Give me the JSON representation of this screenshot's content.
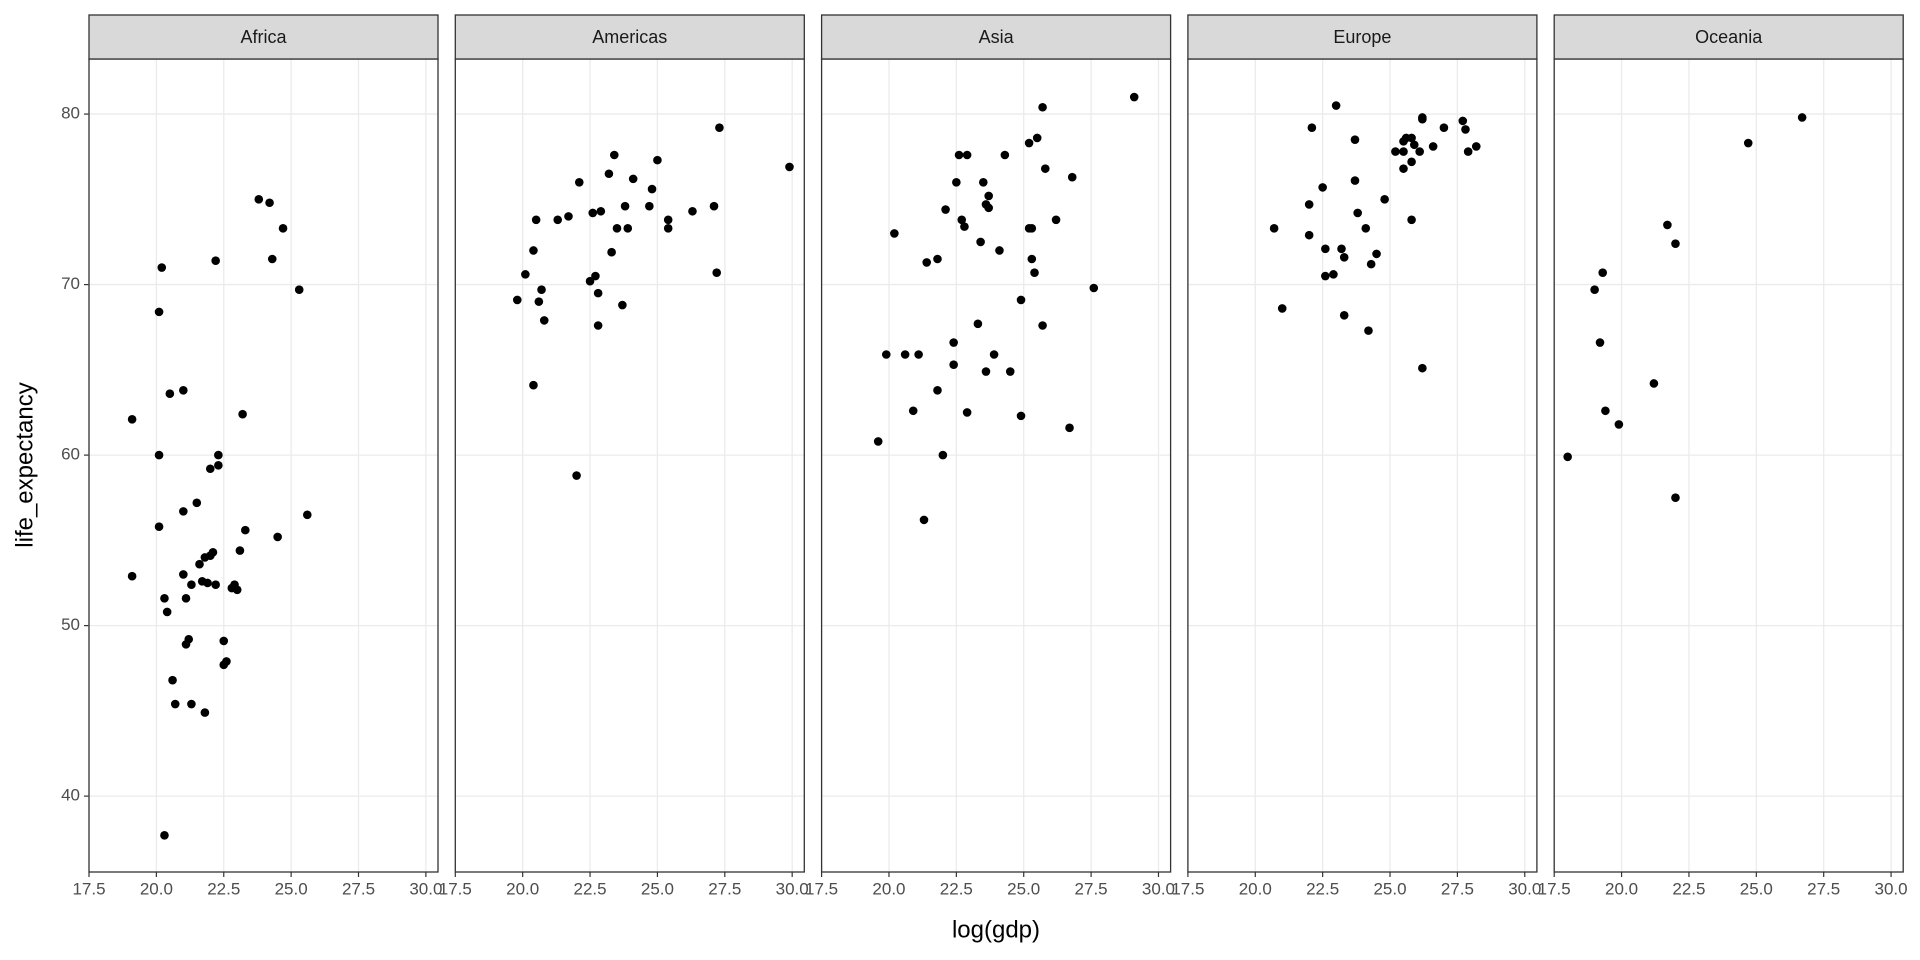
{
  "chart_data": {
    "type": "scatter",
    "x_label": "log(gdp)",
    "y_label": "life_expectancy",
    "color": "#000000",
    "grid": true,
    "xlim": [
      17.5,
      30.45
    ],
    "ylim": [
      35.55,
      83.23
    ],
    "xticks": [
      17.5,
      {
        "value": 20,
        "label": "20.0"
      },
      22.5,
      {
        "value": 25,
        "label": "25.0"
      },
      27.5,
      {
        "value": 30,
        "label": "30.0"
      }
    ],
    "yticks": [
      40,
      50,
      60,
      70,
      80
    ],
    "facets": [
      {
        "name": "Africa",
        "x": [
          19.1,
          19.1,
          20.1,
          20.1,
          20.1,
          20.2,
          20.3,
          20.3,
          20.4,
          20.5,
          20.6,
          20.7,
          21.0,
          21.0,
          21.0,
          21.1,
          21.1,
          21.2,
          21.3,
          21.3,
          21.5,
          21.6,
          21.7,
          21.8,
          21.8,
          21.9,
          22.0,
          22.0,
          22.1,
          22.2,
          22.2,
          22.3,
          22.3,
          22.5,
          22.6,
          22.5,
          22.8,
          22.9,
          23.0,
          23.1,
          23.2,
          23.3,
          23.8,
          24.2,
          24.3,
          24.5,
          24.7,
          25.3,
          25.6
        ],
        "y": [
          62.1,
          52.9,
          55.8,
          60.0,
          68.4,
          71.0,
          51.6,
          37.7,
          50.8,
          63.6,
          46.8,
          45.4,
          63.8,
          56.7,
          53.0,
          51.6,
          48.9,
          49.2,
          45.4,
          52.4,
          57.2,
          53.6,
          52.6,
          54.0,
          44.9,
          52.5,
          54.1,
          59.2,
          54.3,
          52.4,
          71.4,
          60.0,
          59.4,
          47.7,
          47.9,
          49.1,
          52.2,
          52.4,
          52.1,
          54.4,
          62.4,
          55.6,
          75.0,
          74.8,
          71.5,
          55.2,
          73.3,
          69.7,
          56.5
        ]
      },
      {
        "name": "Americas",
        "x": [
          19.8,
          20.1,
          20.4,
          20.4,
          20.5,
          20.6,
          20.7,
          20.8,
          21.3,
          21.7,
          22.0,
          22.1,
          22.5,
          22.6,
          22.7,
          22.8,
          22.8,
          22.9,
          23.2,
          23.3,
          23.4,
          23.5,
          23.7,
          23.8,
          23.9,
          24.1,
          24.7,
          24.8,
          25.0,
          25.4,
          25.4,
          26.3,
          27.1,
          27.2,
          27.3,
          29.9
        ],
        "y": [
          69.1,
          70.6,
          72.0,
          64.1,
          73.8,
          69.0,
          69.7,
          67.9,
          73.8,
          74.0,
          58.8,
          76.0,
          70.2,
          74.2,
          70.5,
          69.5,
          67.6,
          74.3,
          76.5,
          71.9,
          77.6,
          73.3,
          68.8,
          74.6,
          73.3,
          76.2,
          74.6,
          75.6,
          77.3,
          73.3,
          73.8,
          74.3,
          74.6,
          70.7,
          79.2,
          76.9
        ]
      },
      {
        "name": "Asia",
        "x": [
          19.6,
          19.9,
          20.2,
          20.6,
          20.9,
          21.1,
          21.3,
          21.4,
          21.8,
          21.8,
          22.0,
          22.1,
          22.4,
          22.4,
          22.5,
          22.6,
          22.7,
          22.8,
          22.9,
          22.9,
          23.3,
          23.4,
          23.5,
          23.6,
          23.6,
          23.7,
          23.7,
          23.9,
          24.1,
          24.3,
          24.5,
          24.9,
          24.9,
          25.2,
          25.2,
          25.3,
          25.3,
          25.4,
          25.5,
          25.7,
          25.7,
          25.8,
          26.2,
          26.7,
          26.8,
          27.6,
          29.1
        ],
        "y": [
          60.8,
          65.9,
          73.0,
          65.9,
          62.6,
          65.9,
          56.2,
          71.3,
          71.5,
          63.8,
          60.0,
          74.4,
          66.6,
          65.3,
          76.0,
          77.6,
          73.8,
          73.4,
          77.6,
          62.5,
          67.7,
          72.5,
          76.0,
          64.9,
          74.7,
          74.5,
          75.2,
          65.9,
          72.0,
          77.6,
          64.9,
          69.1,
          62.3,
          78.3,
          73.3,
          73.3,
          71.5,
          70.7,
          78.6,
          67.6,
          80.4,
          76.8,
          73.8,
          61.6,
          76.3,
          69.8,
          81.0
        ]
      },
      {
        "name": "Europe",
        "x": [
          20.7,
          21.0,
          22.0,
          22.1,
          22.0,
          22.5,
          22.6,
          22.6,
          22.9,
          23.0,
          23.2,
          23.3,
          23.3,
          23.7,
          23.7,
          23.8,
          24.1,
          24.2,
          24.3,
          24.5,
          24.8,
          25.2,
          25.5,
          25.5,
          25.5,
          25.6,
          25.8,
          25.8,
          25.8,
          25.9,
          26.1,
          26.2,
          26.2,
          26.2,
          26.6,
          27.0,
          27.7,
          27.8,
          27.9,
          28.2
        ],
        "y": [
          73.3,
          68.6,
          72.9,
          79.2,
          74.7,
          75.7,
          72.1,
          70.5,
          70.6,
          80.5,
          72.1,
          71.6,
          68.2,
          78.5,
          76.1,
          74.2,
          73.3,
          67.3,
          71.2,
          71.8,
          75.0,
          77.8,
          76.8,
          78.4,
          77.8,
          78.6,
          77.2,
          73.8,
          78.6,
          78.2,
          77.8,
          79.7,
          79.8,
          65.1,
          78.1,
          79.2,
          79.6,
          79.1,
          77.8,
          78.1
        ]
      },
      {
        "name": "Oceania",
        "x": [
          18.0,
          19.0,
          19.3,
          19.2,
          19.4,
          19.9,
          21.2,
          21.7,
          22.0,
          22.0,
          24.7,
          26.7
        ],
        "y": [
          59.9,
          69.7,
          70.7,
          66.6,
          62.6,
          61.8,
          64.2,
          73.5,
          72.4,
          57.5,
          78.3,
          79.8
        ]
      }
    ]
  }
}
